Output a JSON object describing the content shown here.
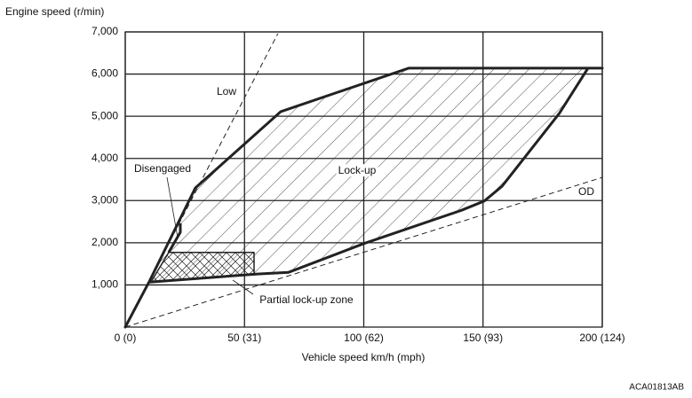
{
  "chart_data": {
    "type": "line",
    "y_label": "Engine speed (r/min)",
    "x_label": "Vehicle speed  km/h (mph)",
    "figure_id": "ACA01813AB",
    "xlim": [
      0,
      200
    ],
    "ylim": [
      0,
      7000
    ],
    "xticks": [
      {
        "value": 0,
        "label": "0 (0)"
      },
      {
        "value": 50,
        "label": "50 (31)"
      },
      {
        "value": 100,
        "label": "100 (62)"
      },
      {
        "value": 150,
        "label": "150 (93)"
      },
      {
        "value": 200,
        "label": "200 (124)"
      }
    ],
    "yticks": [
      {
        "value": 1000,
        "label": "1,000"
      },
      {
        "value": 2000,
        "label": "2,000"
      },
      {
        "value": 3000,
        "label": "3,000"
      },
      {
        "value": 4000,
        "label": "4,000"
      },
      {
        "value": 5000,
        "label": "5,000"
      },
      {
        "value": 6000,
        "label": "6,000"
      },
      {
        "value": 7000,
        "label": "7,000"
      }
    ],
    "grid": true,
    "series": [
      {
        "name": "Low",
        "color": "#222222",
        "style": "dashed",
        "x": [
          0,
          64
        ],
        "values": [
          0,
          6960
        ]
      },
      {
        "name": "OD",
        "color": "#222222",
        "style": "dashed",
        "x": [
          0,
          200
        ],
        "values": [
          0,
          3550
        ]
      },
      {
        "name": "Lock-up",
        "color": "#222222",
        "style": "hatch",
        "x": [
          0,
          10,
          29.4,
          65.2,
          118.8,
          200,
          194,
          182,
          158,
          150.5,
          141,
          100,
          68.5,
          55.5,
          10.8,
          10
        ],
        "values": [
          0,
          1070,
          3300,
          5110,
          6140,
          6140,
          6140,
          5070,
          3340,
          2990,
          2770,
          1980,
          1300,
          1260,
          1070,
          1070
        ]
      },
      {
        "name": "Partial lock-up zone",
        "color": "#222222",
        "style": "crosshatch",
        "x": [
          18.2,
          54,
          54,
          10.8
        ],
        "values": [
          1770,
          1770,
          1260,
          1070
        ]
      },
      {
        "name": "Disengaged",
        "color": "#222222",
        "style": "solid",
        "x": [
          23.1,
          23.1,
          18.2
        ],
        "values": [
          2460,
          2250,
          1770
        ]
      }
    ]
  }
}
